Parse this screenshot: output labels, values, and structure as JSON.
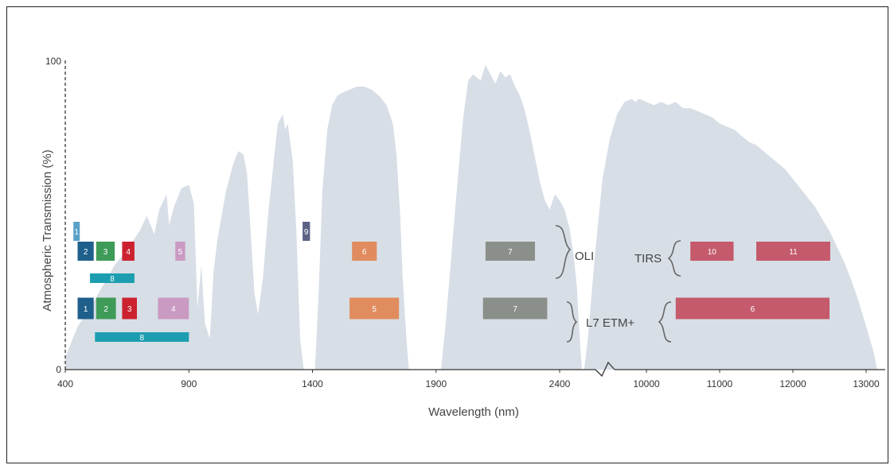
{
  "chart_data": {
    "type": "area",
    "xlabel": "Wavelength (nm)",
    "ylabel": "Atmospheric Transmission (%)",
    "y_ticks": [
      "100",
      "0"
    ],
    "x_ticks_left": [
      "400",
      "900",
      "1400",
      "1900",
      "2400"
    ],
    "x_ticks_right": [
      "10000",
      "11000",
      "12000",
      "13000"
    ],
    "colors": {
      "transmission": "#d7dee6",
      "axis": "#333333"
    },
    "groups": [
      {
        "name": "OLI"
      },
      {
        "name": "TIRS"
      },
      {
        "name": "L7 ETM+"
      }
    ],
    "bands": [
      {
        "sensor": "OLI",
        "label": "1",
        "start": 433,
        "end": 453,
        "color": "#5aa0c8"
      },
      {
        "sensor": "OLI",
        "label": "2",
        "start": 450,
        "end": 515,
        "color": "#1f5f8b"
      },
      {
        "sensor": "OLI",
        "label": "3",
        "start": 525,
        "end": 600,
        "color": "#3f9b58"
      },
      {
        "sensor": "OLI",
        "label": "4",
        "start": 630,
        "end": 680,
        "color": "#cc2230"
      },
      {
        "sensor": "OLI",
        "label": "5",
        "start": 845,
        "end": 885,
        "color": "#c99ac2"
      },
      {
        "sensor": "OLI",
        "label": "9",
        "start": 1360,
        "end": 1390,
        "color": "#5b6285"
      },
      {
        "sensor": "OLI",
        "label": "6",
        "start": 1560,
        "end": 1660,
        "color": "#e08c5e"
      },
      {
        "sensor": "OLI",
        "label": "7",
        "start": 2100,
        "end": 2300,
        "color": "#8a8f89"
      },
      {
        "sensor": "OLI",
        "label": "8",
        "start": 500,
        "end": 680,
        "color": "#1c9eb0"
      },
      {
        "sensor": "TIRS",
        "label": "10",
        "start": 10600,
        "end": 11190,
        "color": "#c45a6b"
      },
      {
        "sensor": "TIRS",
        "label": "11",
        "start": 11500,
        "end": 12510,
        "color": "#c45a6b"
      },
      {
        "sensor": "L7 ETM+",
        "label": "1",
        "start": 450,
        "end": 515,
        "color": "#1f5f8b"
      },
      {
        "sensor": "L7 ETM+",
        "label": "2",
        "start": 525,
        "end": 605,
        "color": "#3f9b58"
      },
      {
        "sensor": "L7 ETM+",
        "label": "3",
        "start": 630,
        "end": 690,
        "color": "#cc2230"
      },
      {
        "sensor": "L7 ETM+",
        "label": "4",
        "start": 775,
        "end": 900,
        "color": "#c99ac2"
      },
      {
        "sensor": "L7 ETM+",
        "label": "5",
        "start": 1550,
        "end": 1750,
        "color": "#e08c5e"
      },
      {
        "sensor": "L7 ETM+",
        "label": "7",
        "start": 2090,
        "end": 2350,
        "color": "#8a8f89"
      },
      {
        "sensor": "L7 ETM+",
        "label": "6",
        "start": 10400,
        "end": 12500,
        "color": "#c45a6b"
      },
      {
        "sensor": "L7 ETM+",
        "label": "8",
        "start": 520,
        "end": 900,
        "color": "#1c9eb0"
      }
    ],
    "transmission_left": [
      [
        400,
        4
      ],
      [
        420,
        8
      ],
      [
        450,
        14
      ],
      [
        500,
        20
      ],
      [
        550,
        27
      ],
      [
        600,
        34
      ],
      [
        650,
        39
      ],
      [
        700,
        45
      ],
      [
        730,
        50
      ],
      [
        760,
        44
      ],
      [
        780,
        52
      ],
      [
        810,
        57
      ],
      [
        820,
        47
      ],
      [
        840,
        53
      ],
      [
        870,
        59
      ],
      [
        900,
        60
      ],
      [
        920,
        54
      ],
      [
        935,
        20
      ],
      [
        950,
        34
      ],
      [
        965,
        15
      ],
      [
        985,
        10
      ],
      [
        1000,
        32
      ],
      [
        1015,
        42
      ],
      [
        1050,
        58
      ],
      [
        1080,
        67
      ],
      [
        1100,
        71
      ],
      [
        1120,
        70
      ],
      [
        1135,
        64
      ],
      [
        1150,
        45
      ],
      [
        1165,
        25
      ],
      [
        1180,
        18
      ],
      [
        1200,
        30
      ],
      [
        1220,
        50
      ],
      [
        1240,
        65
      ],
      [
        1250,
        73
      ],
      [
        1260,
        80
      ],
      [
        1280,
        83
      ],
      [
        1290,
        78
      ],
      [
        1300,
        80
      ],
      [
        1320,
        68
      ],
      [
        1335,
        45
      ],
      [
        1350,
        10
      ],
      [
        1365,
        0
      ],
      [
        1410,
        0
      ],
      [
        1425,
        25
      ],
      [
        1440,
        58
      ],
      [
        1460,
        78
      ],
      [
        1480,
        86
      ],
      [
        1500,
        89
      ],
      [
        1520,
        90
      ],
      [
        1550,
        91
      ],
      [
        1580,
        92
      ],
      [
        1610,
        92
      ],
      [
        1640,
        91
      ],
      [
        1670,
        89
      ],
      [
        1700,
        86
      ],
      [
        1725,
        80
      ],
      [
        1740,
        70
      ],
      [
        1755,
        50
      ],
      [
        1765,
        30
      ],
      [
        1780,
        10
      ],
      [
        1790,
        0
      ],
      [
        1920,
        0
      ],
      [
        1940,
        16
      ],
      [
        1965,
        40
      ],
      [
        1990,
        64
      ],
      [
        2010,
        82
      ],
      [
        2030,
        94
      ],
      [
        2050,
        96
      ],
      [
        2080,
        94
      ],
      [
        2100,
        99
      ],
      [
        2120,
        96
      ],
      [
        2140,
        93
      ],
      [
        2160,
        97
      ],
      [
        2180,
        95
      ],
      [
        2200,
        96
      ],
      [
        2220,
        92
      ],
      [
        2240,
        89
      ],
      [
        2260,
        84
      ],
      [
        2280,
        77
      ],
      [
        2300,
        69
      ],
      [
        2320,
        61
      ],
      [
        2340,
        55
      ],
      [
        2360,
        52
      ],
      [
        2380,
        57
      ],
      [
        2400,
        55
      ],
      [
        2420,
        52
      ],
      [
        2440,
        46
      ],
      [
        2455,
        38
      ],
      [
        2470,
        27
      ],
      [
        2480,
        12
      ],
      [
        2490,
        0
      ]
    ],
    "transmission_right": [
      [
        9150,
        0
      ],
      [
        9200,
        10
      ],
      [
        9300,
        38
      ],
      [
        9400,
        62
      ],
      [
        9500,
        75
      ],
      [
        9600,
        83
      ],
      [
        9700,
        87
      ],
      [
        9800,
        88
      ],
      [
        9850,
        87
      ],
      [
        9900,
        88
      ],
      [
        10000,
        87
      ],
      [
        10100,
        86
      ],
      [
        10200,
        87
      ],
      [
        10300,
        86
      ],
      [
        10400,
        87
      ],
      [
        10500,
        85
      ],
      [
        10600,
        85
      ],
      [
        10700,
        84
      ],
      [
        10800,
        83
      ],
      [
        10900,
        82
      ],
      [
        11000,
        80
      ],
      [
        11100,
        79
      ],
      [
        11200,
        78
      ],
      [
        11300,
        76
      ],
      [
        11400,
        74
      ],
      [
        11500,
        73
      ],
      [
        11600,
        71
      ],
      [
        11700,
        69
      ],
      [
        11800,
        67
      ],
      [
        11900,
        65
      ],
      [
        12000,
        62
      ],
      [
        12100,
        59
      ],
      [
        12200,
        56
      ],
      [
        12300,
        53
      ],
      [
        12400,
        49
      ],
      [
        12500,
        45
      ],
      [
        12600,
        40
      ],
      [
        12700,
        35
      ],
      [
        12800,
        29
      ],
      [
        12900,
        22
      ],
      [
        13000,
        14
      ],
      [
        13100,
        6
      ],
      [
        13150,
        0
      ]
    ]
  }
}
